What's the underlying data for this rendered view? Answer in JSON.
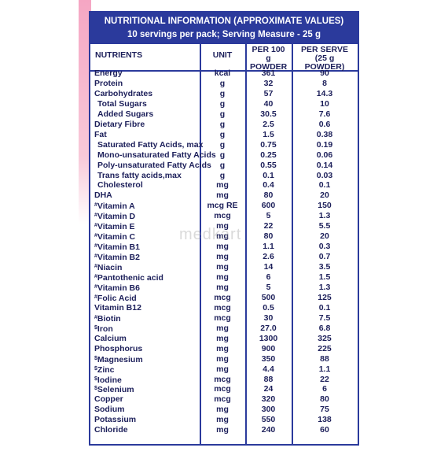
{
  "header": {
    "title": "NUTRITIONAL INFORMATION (APPROXIMATE VALUES)",
    "subtitle": "10 servings per pack; Serving Measure - 25 g"
  },
  "table": {
    "columns": [
      "NUTRIENTS",
      "UNIT",
      "PER 100 g POWDER",
      "PER SERVE (25 g POWDER)"
    ],
    "rows": [
      {
        "name": "Energy",
        "unit": "kcal",
        "per100": "361",
        "serve": "90"
      },
      {
        "name": "Protein",
        "unit": "g",
        "per100": "32",
        "serve": "8"
      },
      {
        "name": "Carbohydrates",
        "unit": "g",
        "per100": "57",
        "serve": "14.3"
      },
      {
        "name": "Total Sugars",
        "unit": "g",
        "per100": "40",
        "serve": "10"
      },
      {
        "name": "Added Sugars",
        "unit": "g",
        "per100": "30.5",
        "serve": "7.6"
      },
      {
        "name": "Dietary Fibre",
        "unit": "g",
        "per100": "2.5",
        "serve": "0.6"
      },
      {
        "name": "Fat",
        "unit": "g",
        "per100": "1.5",
        "serve": "0.38"
      },
      {
        "name": "Saturated Fatty Acids, max",
        "unit": "g",
        "per100": "0.75",
        "serve": "0.19"
      },
      {
        "name": "Mono-unsaturated Fatty Acids",
        "unit": "g",
        "per100": "0.25",
        "serve": "0.06"
      },
      {
        "name": "Poly-unsaturated Fatty Acids",
        "unit": "g",
        "per100": "0.55",
        "serve": "0.14"
      },
      {
        "name": "Trans fatty acids,max",
        "unit": "g",
        "per100": "0.1",
        "serve": "0.03"
      },
      {
        "name": "Cholesterol",
        "unit": "mg",
        "per100": "0.4",
        "serve": "0.1"
      },
      {
        "name": "DHA",
        "unit": "mg",
        "per100": "80",
        "serve": "20"
      },
      {
        "mark": "#",
        "name": "Vitamin A",
        "unit": "mcg RE",
        "per100": "600",
        "serve": "150"
      },
      {
        "mark": "#",
        "name": "Vitamin D",
        "unit": "mcg",
        "per100": "5",
        "serve": "1.3"
      },
      {
        "mark": "#",
        "name": "Vitamin E",
        "unit": "mg",
        "per100": "22",
        "serve": "5.5"
      },
      {
        "mark": "#",
        "name": "Vitamin C",
        "unit": "mg",
        "per100": "80",
        "serve": "20"
      },
      {
        "mark": "#",
        "name": "Vitamin B1",
        "unit": "mg",
        "per100": "1.1",
        "serve": "0.3"
      },
      {
        "mark": "#",
        "name": "Vitamin B2",
        "unit": "mg",
        "per100": "2.6",
        "serve": "0.7"
      },
      {
        "mark": "#",
        "name": "Niacin",
        "unit": "mg",
        "per100": "14",
        "serve": "3.5"
      },
      {
        "mark": "#",
        "name": "Pantothenic acid",
        "unit": "mg",
        "per100": "6",
        "serve": "1.5"
      },
      {
        "mark": "#",
        "name": "Vitamin B6",
        "unit": "mg",
        "per100": "5",
        "serve": "1.3"
      },
      {
        "mark": "#",
        "name": "Folic Acid",
        "unit": "mcg",
        "per100": "500",
        "serve": "125"
      },
      {
        "name": "Vitamin B12",
        "unit": "mcg",
        "per100": "0.5",
        "serve": "0.1"
      },
      {
        "mark": "#",
        "name": "Biotin",
        "unit": "mcg",
        "per100": "30",
        "serve": "7.5"
      },
      {
        "mark": "$",
        "name": "Iron",
        "unit": "mg",
        "per100": "27.0",
        "serve": "6.8"
      },
      {
        "name": "Calcium",
        "unit": "mg",
        "per100": "1300",
        "serve": "325"
      },
      {
        "name": "Phosphorus",
        "unit": "mg",
        "per100": "900",
        "serve": "225"
      },
      {
        "mark": "$",
        "name": "Magnesium",
        "unit": "mg",
        "per100": "350",
        "serve": "88"
      },
      {
        "mark": "$",
        "name": "Zinc",
        "unit": "mg",
        "per100": "4.4",
        "serve": "1.1"
      },
      {
        "mark": "$",
        "name": "Iodine",
        "unit": "mcg",
        "per100": "88",
        "serve": "22"
      },
      {
        "mark": "$",
        "name": "Selenium",
        "unit": "mcg",
        "per100": "24",
        "serve": "6"
      },
      {
        "name": "Copper",
        "unit": "mcg",
        "per100": "320",
        "serve": "80"
      },
      {
        "name": "Sodium",
        "unit": "mg",
        "per100": "300",
        "serve": "75"
      },
      {
        "name": "Potassium",
        "unit": "mg",
        "per100": "550",
        "serve": "138"
      },
      {
        "name": "Chloride",
        "unit": "mg",
        "per100": "240",
        "serve": "60"
      }
    ]
  },
  "watermark": "medkart"
}
